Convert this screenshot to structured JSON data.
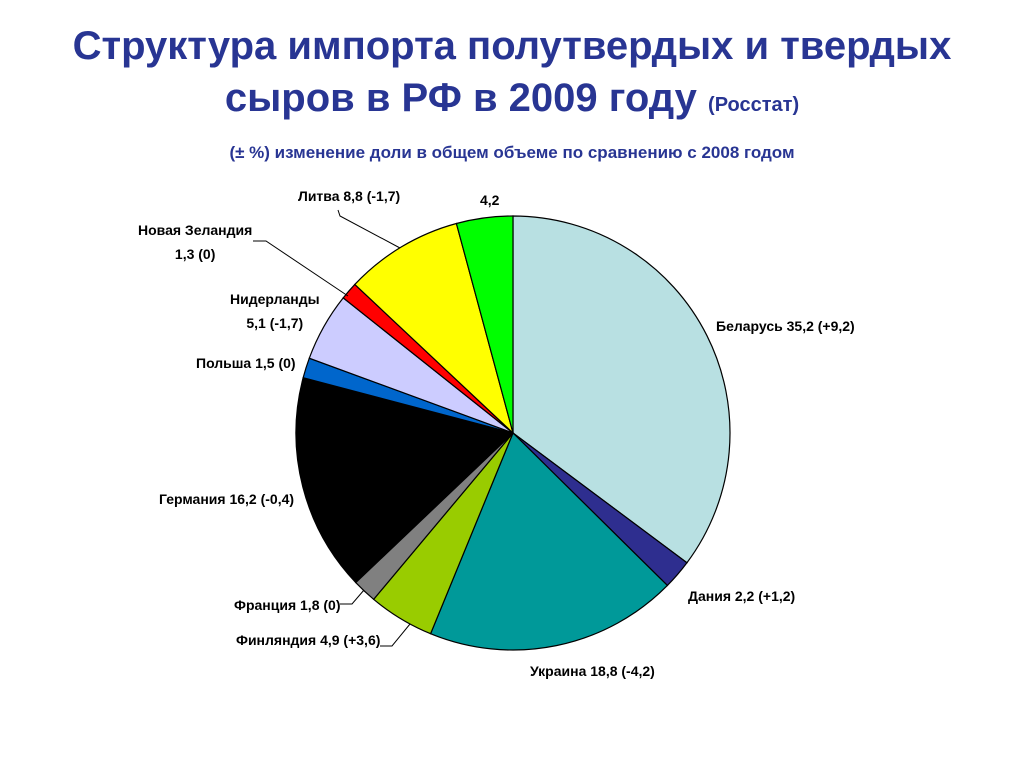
{
  "title_line1": "Структура импорта полутвердых и твердых",
  "title_line2": "сыров в РФ в 2009 году",
  "title_source": "(Росстат)",
  "subtitle": "(± %) изменение доли в общем объеме по сравнению с 2008 годом",
  "chart_data": {
    "type": "pie",
    "title": "Структура импорта полутвердых и твердых сыров в РФ в 2009 году (Росстат)",
    "subtitle": "(± %) изменение доли в общем объеме по сравнению с 2008 годом",
    "start": "12 o'clock",
    "direction": "clockwise",
    "slices": [
      {
        "label": "Беларусь 35,2 (+9,2)",
        "value": 35.2,
        "color": "#b8e0e2"
      },
      {
        "label": "Дания 2,2 (+1,2)",
        "value": 2.2,
        "color": "#2e2e8f"
      },
      {
        "label": "Украина 18,8 (-4,2)",
        "value": 18.8,
        "color": "#009999"
      },
      {
        "label": "Финляндия 4,9 (+3,6)",
        "value": 4.9,
        "color": "#99cc00"
      },
      {
        "label": "Франция 1,8 (0)",
        "value": 1.8,
        "color": "#808080"
      },
      {
        "label": "Германия 16,2 (-0,4)",
        "value": 16.2,
        "color": "#000000"
      },
      {
        "label": "Польша 1,5 (0)",
        "value": 1.5,
        "color": "#0066cc"
      },
      {
        "label": "Нидерланды 5,1 (-1,7)",
        "value": 5.1,
        "color": "#ccccff"
      },
      {
        "label": "Новая Зеландия 1,3 (0)",
        "value": 1.3,
        "color": "#ff0000"
      },
      {
        "label": "Литва 8,8 (-1,7)",
        "value": 8.8,
        "color": "#ffff00"
      },
      {
        "label": "4,2",
        "value": 4.2,
        "color": "#00ff00"
      }
    ]
  }
}
